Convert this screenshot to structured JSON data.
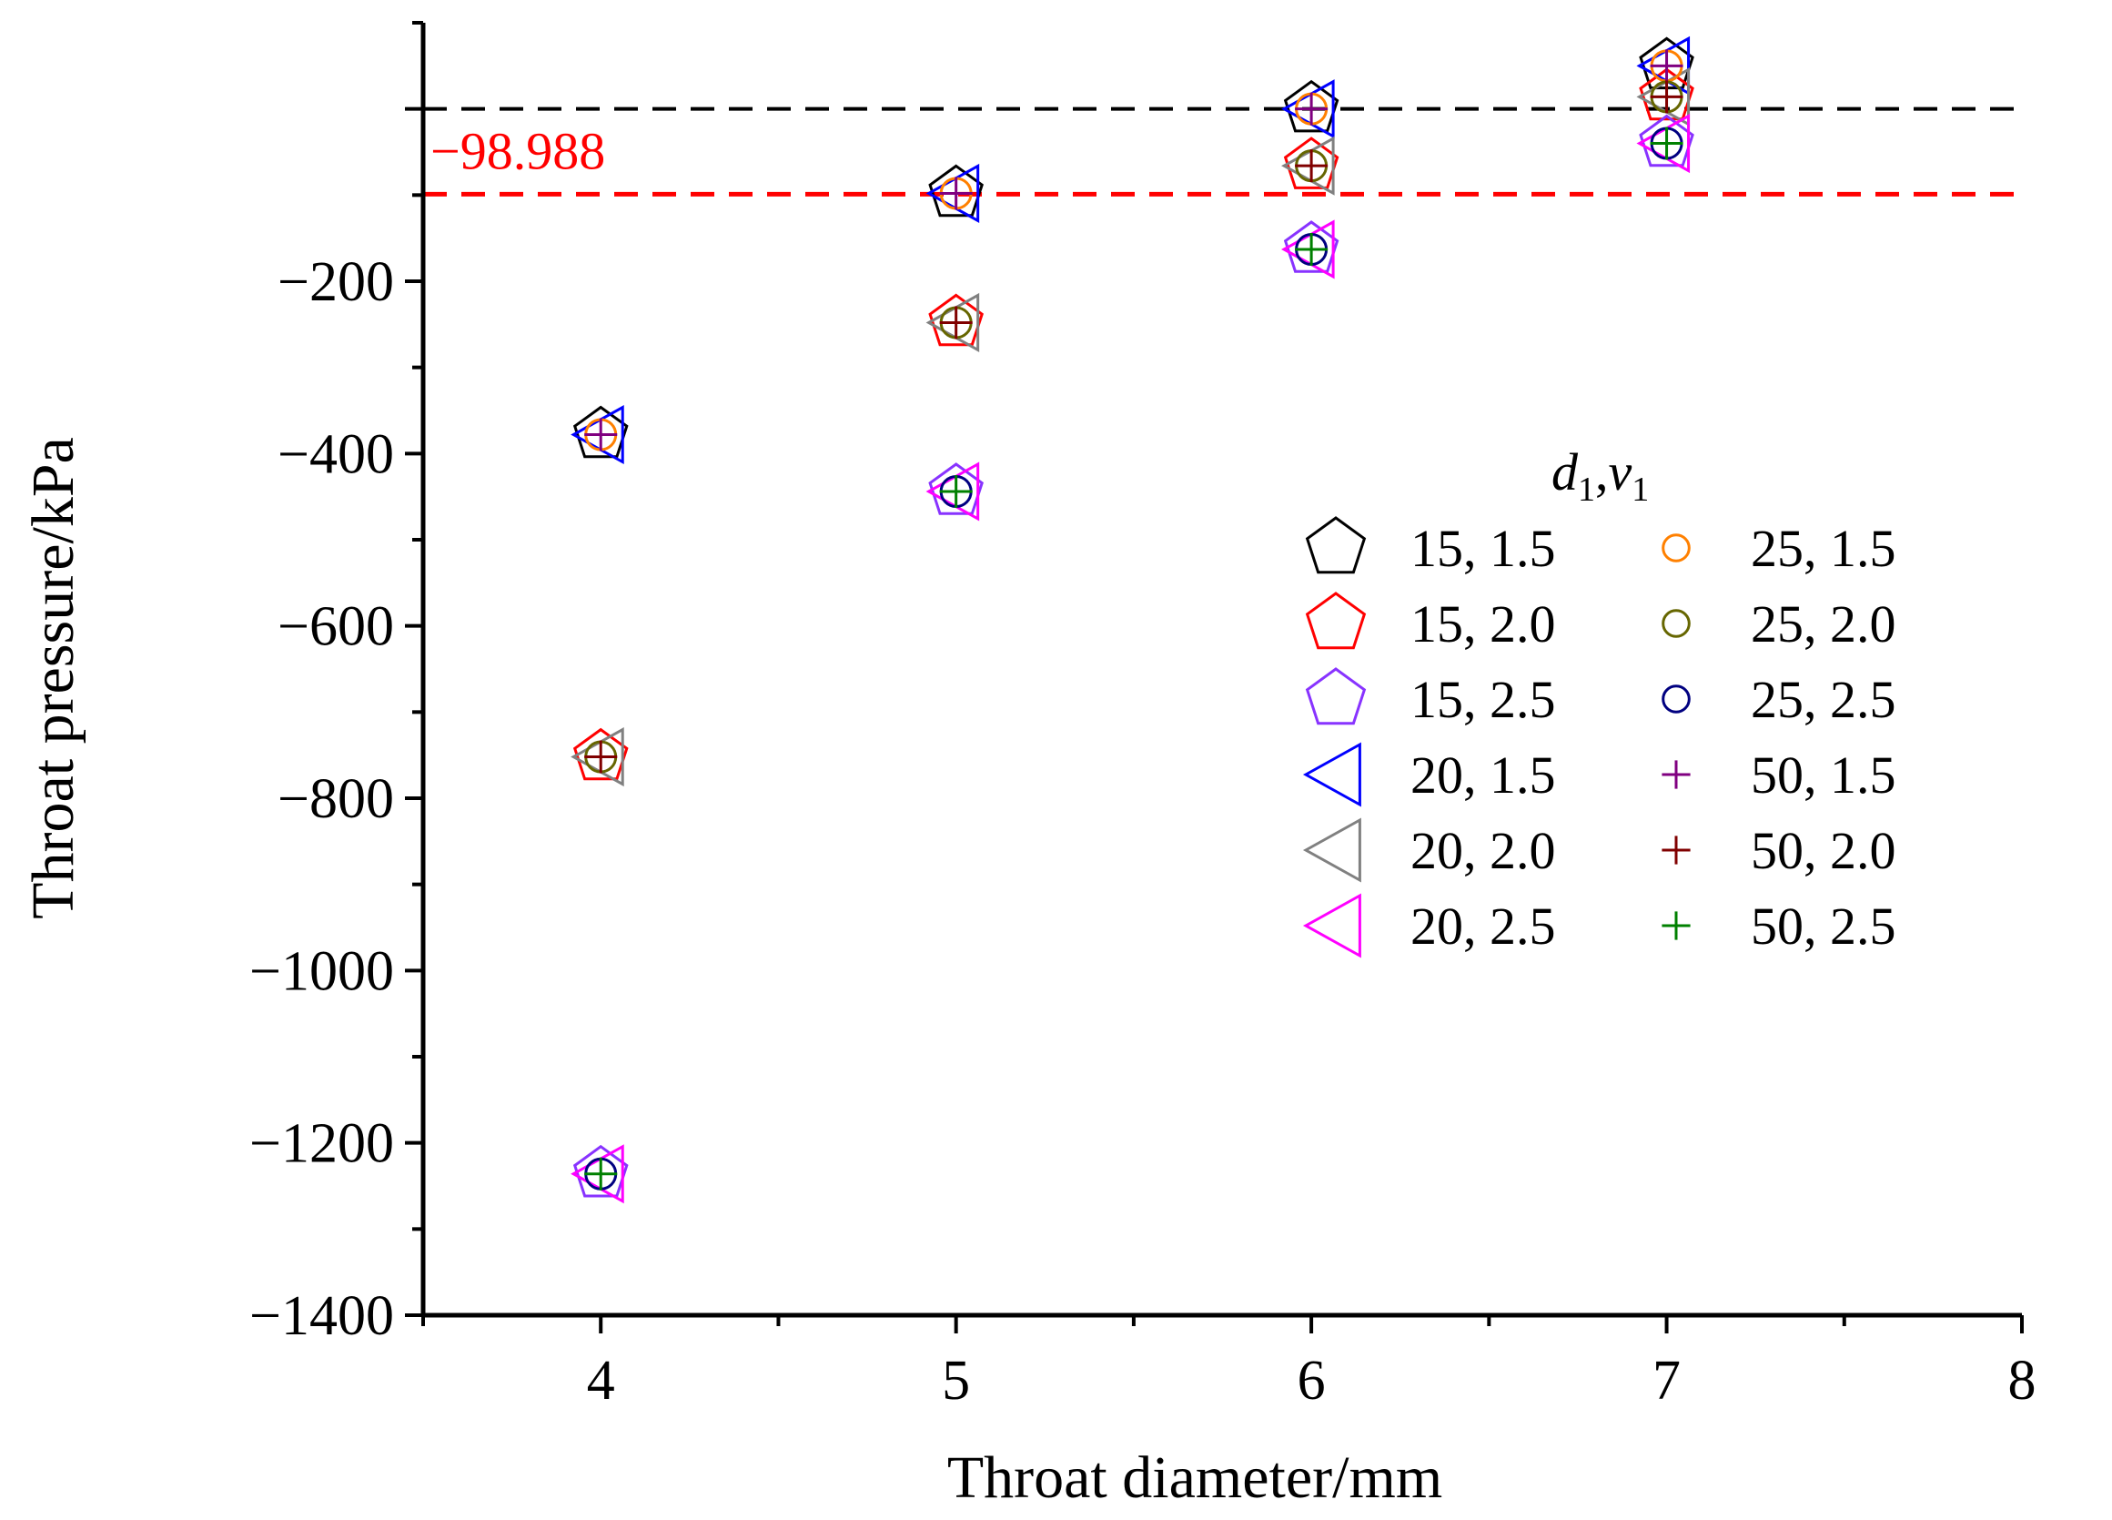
{
  "chart_data": {
    "type": "scatter",
    "xlabel": "Throat diameter/mm",
    "ylabel": "Throat pressure/kPa",
    "xlim": [
      3.5,
      8
    ],
    "ylim": [
      -1400,
      100
    ],
    "x_ticks": [
      "4",
      "5",
      "6",
      "7",
      "8"
    ],
    "y_ticks": [
      "−200",
      "−400",
      "−600",
      "−800",
      "−1000",
      "−1200",
      "−1400"
    ],
    "reference_lines": [
      {
        "name": "zero",
        "y": 0,
        "color": "#000000",
        "label": ""
      },
      {
        "name": "limit",
        "y": -98.988,
        "color": "#ff0000",
        "label": "−98.988"
      }
    ],
    "legend_title": {
      "d": "d",
      "sub1": "1",
      "comma": ",",
      "v": "v",
      "sub2": "1"
    },
    "legend_position": "right-middle",
    "series": [
      {
        "name": "15, 1.5",
        "marker": "pentagon",
        "color": "#000000",
        "x": [
          4,
          5,
          6,
          7
        ],
        "y": [
          -378,
          -98,
          0,
          50
        ]
      },
      {
        "name": "15, 2.0",
        "marker": "pentagon",
        "color": "#ff0000",
        "x": [
          4,
          5,
          6,
          7
        ],
        "y": [
          -752,
          -248,
          -66,
          14
        ]
      },
      {
        "name": "15, 2.5",
        "marker": "pentagon",
        "color": "#8833ff",
        "x": [
          4,
          5,
          6,
          7
        ],
        "y": [
          -1236,
          -444,
          -163,
          -40
        ]
      },
      {
        "name": "20, 1.5",
        "marker": "triangle-left",
        "color": "#0000ff",
        "x": [
          4,
          5,
          6,
          7
        ],
        "y": [
          -378,
          -98,
          0,
          50
        ]
      },
      {
        "name": "20, 2.0",
        "marker": "triangle-left",
        "color": "#808080",
        "x": [
          4,
          5,
          6,
          7
        ],
        "y": [
          -752,
          -248,
          -66,
          14
        ]
      },
      {
        "name": "20, 2.5",
        "marker": "triangle-left",
        "color": "#ff00ff",
        "x": [
          4,
          5,
          6,
          7
        ],
        "y": [
          -1236,
          -444,
          -163,
          -40
        ]
      },
      {
        "name": "25, 1.5",
        "marker": "circle",
        "color": "#ff8000",
        "x": [
          4,
          5,
          6,
          7
        ],
        "y": [
          -378,
          -98,
          0,
          50
        ]
      },
      {
        "name": "25, 2.0",
        "marker": "circle",
        "color": "#666600",
        "x": [
          4,
          5,
          6,
          7
        ],
        "y": [
          -752,
          -248,
          -66,
          14
        ]
      },
      {
        "name": "25, 2.5",
        "marker": "circle",
        "color": "#000080",
        "x": [
          4,
          5,
          6,
          7
        ],
        "y": [
          -1236,
          -444,
          -163,
          -40
        ]
      },
      {
        "name": "50, 1.5",
        "marker": "plus",
        "color": "#800080",
        "x": [
          4,
          5,
          6,
          7
        ],
        "y": [
          -378,
          -98,
          0,
          50
        ]
      },
      {
        "name": "50, 2.0",
        "marker": "plus",
        "color": "#800000",
        "x": [
          4,
          5,
          6,
          7
        ],
        "y": [
          -752,
          -248,
          -66,
          14
        ]
      },
      {
        "name": "50, 2.5",
        "marker": "plus",
        "color": "#008000",
        "x": [
          4,
          5,
          6,
          7
        ],
        "y": [
          -1236,
          -444,
          -163,
          -40
        ]
      }
    ]
  }
}
